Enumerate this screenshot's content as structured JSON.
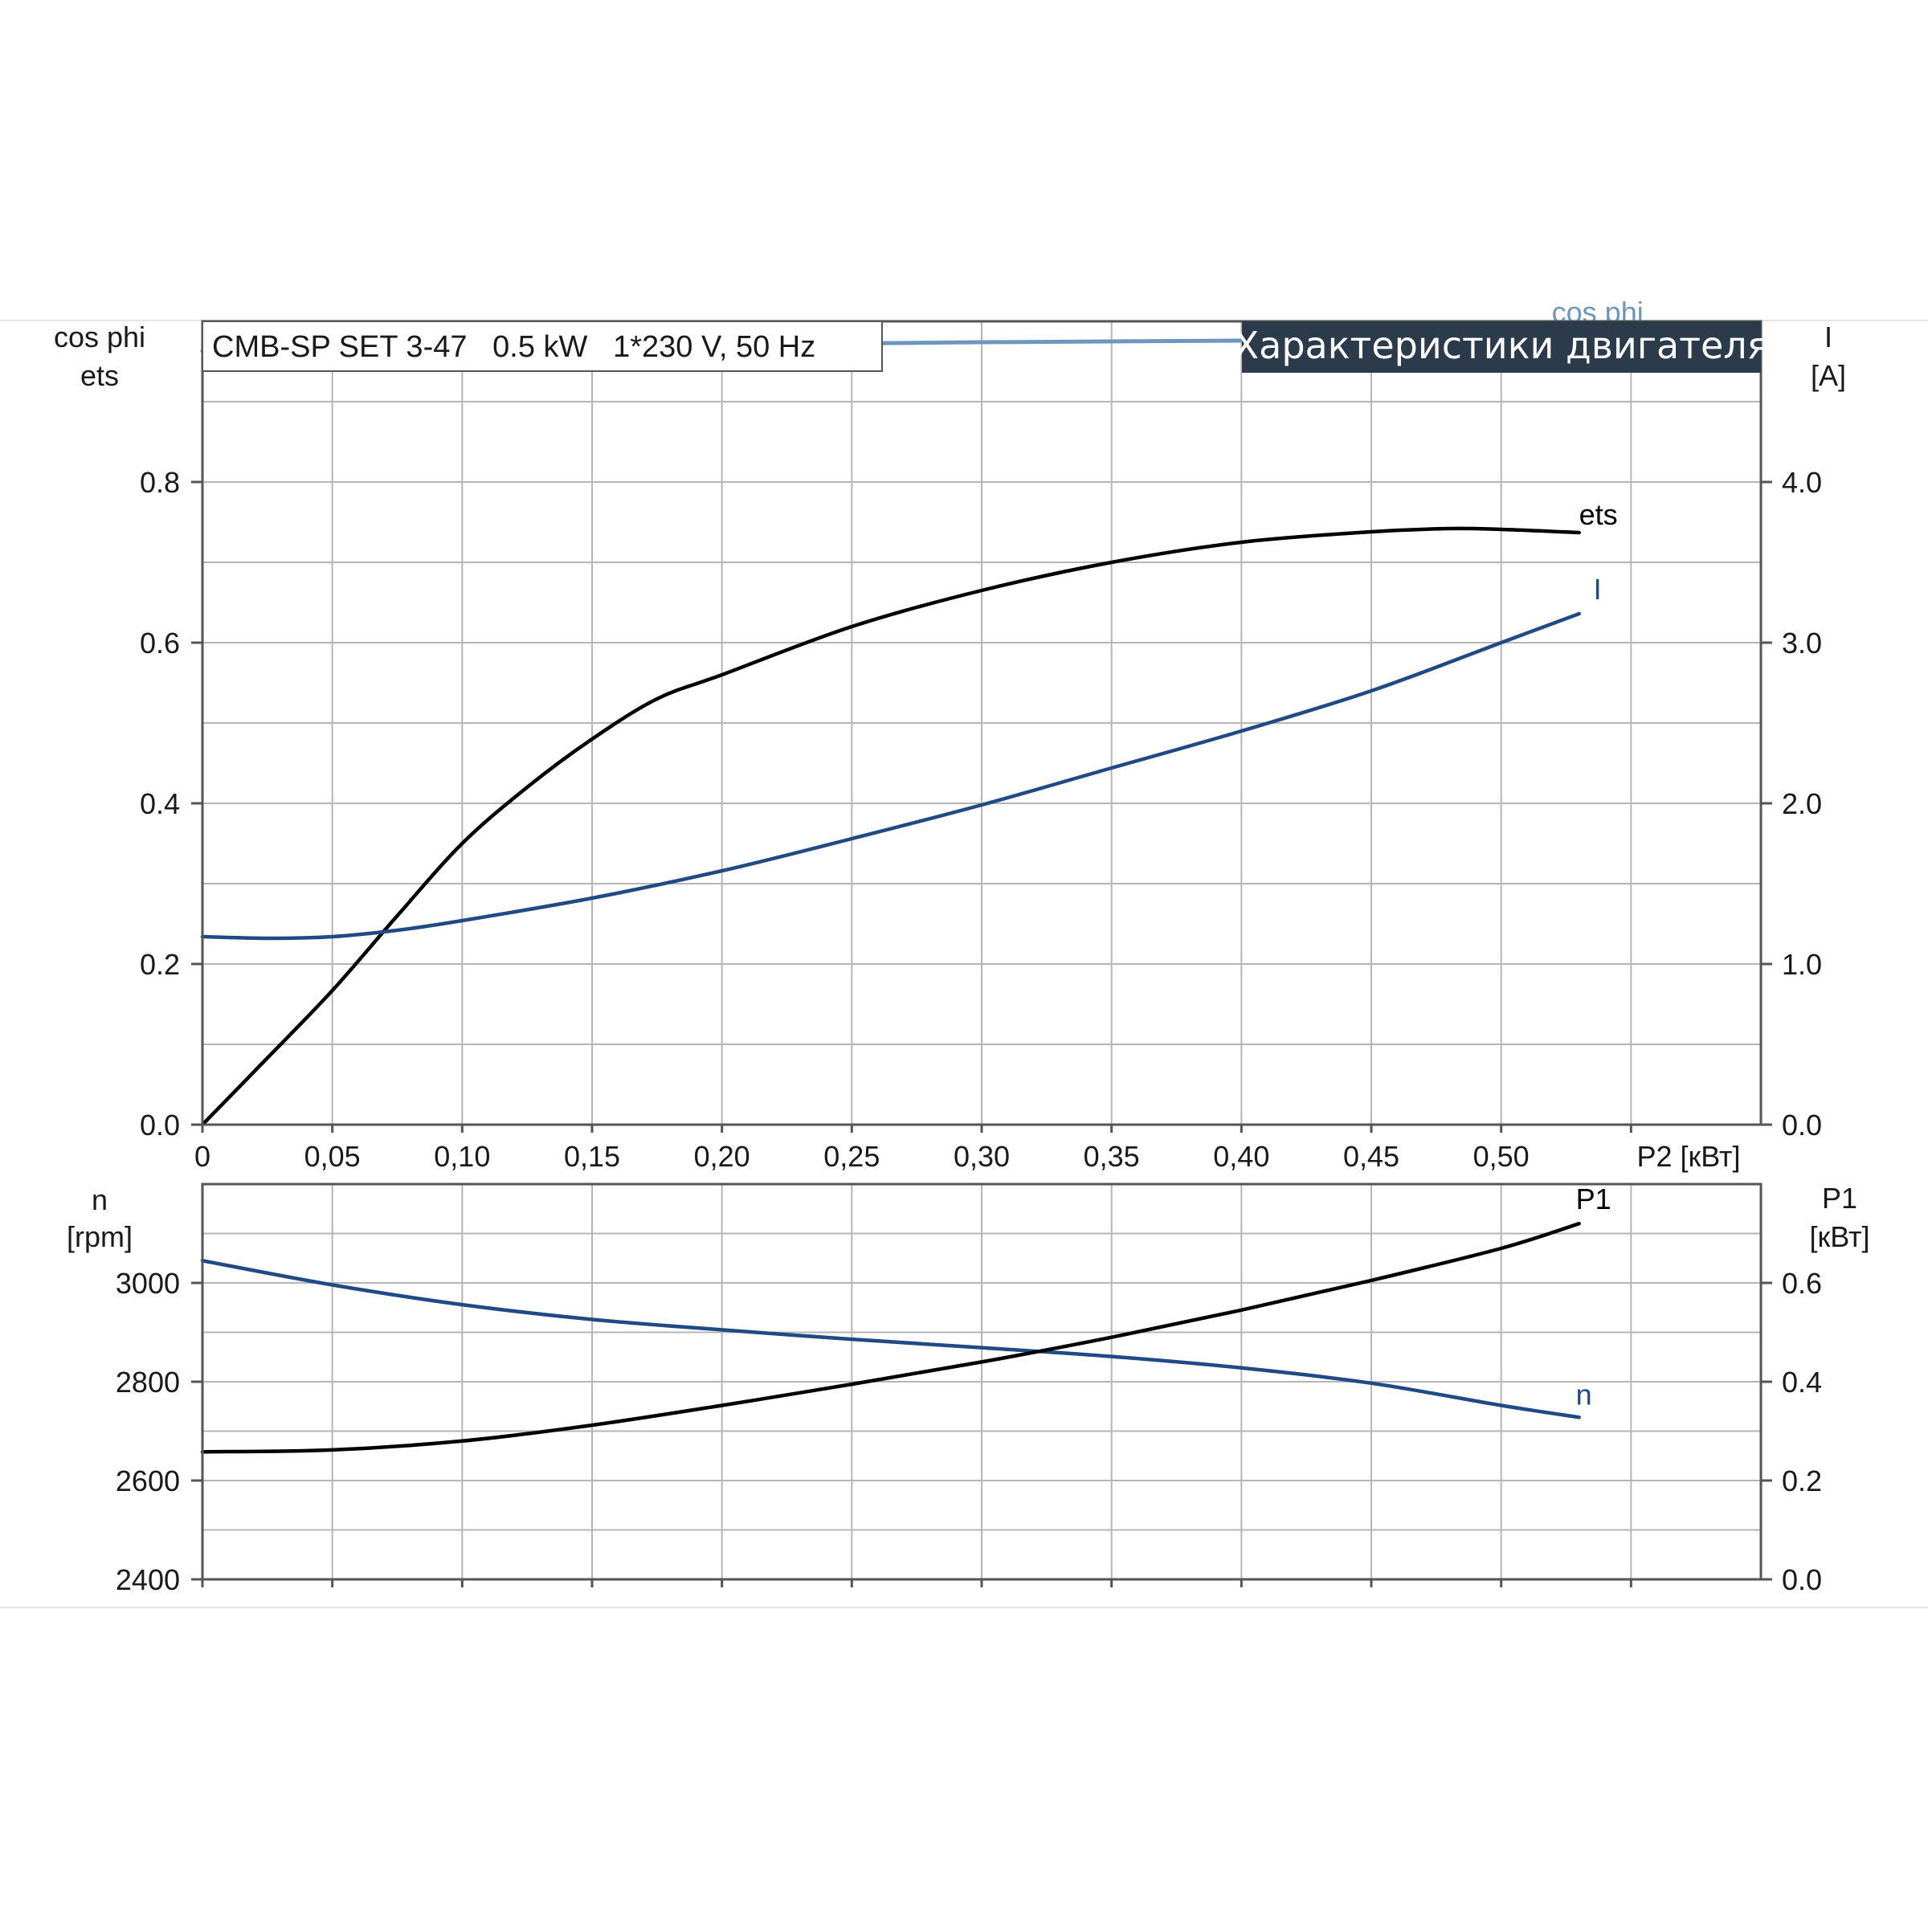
{
  "header": {
    "model_box": "CMB-SP SET 3-47   0.5 kW   1*230 V, 50 Hz",
    "title": "Характеристики двигателя"
  },
  "colors": {
    "ets": "#000000",
    "current": "#1f4a86",
    "cos_phi": "#6e97bf",
    "n": "#1f4a86",
    "p1": "#000000",
    "title_bg": "#2c3b4c",
    "grid": "#b6b6b6",
    "frame": "#555555"
  },
  "chart_data": [
    {
      "type": "line",
      "id": "top",
      "x": {
        "label": "P2 [кВт]",
        "lim": [
          0,
          0.6
        ],
        "ticks": [
          0,
          0.05,
          0.1,
          0.15,
          0.2,
          0.25,
          0.3,
          0.35,
          0.4,
          0.45,
          0.5
        ],
        "tick_labels": [
          "0",
          "0,05",
          "0,10",
          "0,15",
          "0,20",
          "0,25",
          "0,30",
          "0,35",
          "0,40",
          "0,45",
          "0,50"
        ]
      },
      "y_left": {
        "label_lines": [
          "cos phi",
          "ets"
        ],
        "lim": [
          0,
          1.0
        ],
        "ticks": [
          0,
          0.2,
          0.4,
          0.6,
          0.8
        ],
        "tick_labels": [
          "0.0",
          "0.2",
          "0.4",
          "0.6",
          "0.8"
        ]
      },
      "y_right": {
        "label_lines": [
          "I",
          "[A]"
        ],
        "lim": [
          0,
          5.0
        ],
        "ticks": [
          0,
          1.0,
          2.0,
          3.0,
          4.0
        ],
        "tick_labels": [
          "0.0",
          "1.0",
          "2.0",
          "3.0",
          "4.0"
        ]
      },
      "grid": true,
      "series": [
        {
          "name": "cos phi",
          "axis": "left",
          "color_key": "cos_phi",
          "points": [
            [
              0,
              0.963
            ],
            [
              0.1,
              0.967
            ],
            [
              0.2,
              0.971
            ],
            [
              0.3,
              0.974
            ],
            [
              0.4,
              0.976
            ],
            [
              0.5,
              0.978
            ],
            [
              0.53,
              0.979
            ]
          ]
        },
        {
          "name": "ets",
          "axis": "left",
          "color_key": "ets",
          "points": [
            [
              0,
              0.0
            ],
            [
              0.025,
              0.083
            ],
            [
              0.05,
              0.167
            ],
            [
              0.075,
              0.26
            ],
            [
              0.1,
              0.35
            ],
            [
              0.125,
              0.42
            ],
            [
              0.15,
              0.48
            ],
            [
              0.175,
              0.53
            ],
            [
              0.2,
              0.56
            ],
            [
              0.25,
              0.62
            ],
            [
              0.3,
              0.665
            ],
            [
              0.35,
              0.7
            ],
            [
              0.4,
              0.725
            ],
            [
              0.45,
              0.738
            ],
            [
              0.48,
              0.742
            ],
            [
              0.5,
              0.741
            ],
            [
              0.53,
              0.737
            ]
          ]
        },
        {
          "name": "I",
          "axis": "right",
          "color_key": "current",
          "points": [
            [
              0,
              1.17
            ],
            [
              0.025,
              1.16
            ],
            [
              0.05,
              1.17
            ],
            [
              0.075,
              1.21
            ],
            [
              0.1,
              1.27
            ],
            [
              0.15,
              1.41
            ],
            [
              0.2,
              1.58
            ],
            [
              0.25,
              1.78
            ],
            [
              0.3,
              1.99
            ],
            [
              0.35,
              2.22
            ],
            [
              0.4,
              2.45
            ],
            [
              0.45,
              2.7
            ],
            [
              0.5,
              3.0
            ],
            [
              0.53,
              3.18
            ]
          ]
        }
      ]
    },
    {
      "type": "line",
      "id": "bottom",
      "x": {
        "lim": [
          0,
          0.6
        ],
        "ticks": [
          0,
          0.05,
          0.1,
          0.15,
          0.2,
          0.25,
          0.3,
          0.35,
          0.4,
          0.45,
          0.5,
          0.55
        ]
      },
      "y_left": {
        "label_lines": [
          "n",
          "[rpm]"
        ],
        "lim": [
          2400,
          3200
        ],
        "ticks": [
          2400,
          2600,
          2800,
          3000
        ],
        "tick_labels": [
          "2400",
          "2600",
          "2800",
          "3000"
        ]
      },
      "y_right": {
        "label_lines": [
          "P1",
          "[кВт]"
        ],
        "lim": [
          0,
          0.8
        ],
        "ticks": [
          0,
          0.2,
          0.4,
          0.6
        ],
        "tick_labels": [
          "0.0",
          "0.2",
          "0.4",
          "0.6"
        ]
      },
      "grid": true,
      "series": [
        {
          "name": "n",
          "axis": "left",
          "color_key": "n",
          "points": [
            [
              0,
              3045
            ],
            [
              0.05,
              2996
            ],
            [
              0.1,
              2956
            ],
            [
              0.15,
              2926
            ],
            [
              0.2,
              2905
            ],
            [
              0.25,
              2886
            ],
            [
              0.3,
              2869
            ],
            [
              0.35,
              2851
            ],
            [
              0.4,
              2828
            ],
            [
              0.45,
              2797
            ],
            [
              0.5,
              2752
            ],
            [
              0.53,
              2728
            ]
          ]
        },
        {
          "name": "P1",
          "axis": "right",
          "color_key": "p1",
          "points": [
            [
              0,
              0.258
            ],
            [
              0.05,
              0.262
            ],
            [
              0.1,
              0.28
            ],
            [
              0.15,
              0.312
            ],
            [
              0.2,
              0.352
            ],
            [
              0.25,
              0.395
            ],
            [
              0.3,
              0.44
            ],
            [
              0.35,
              0.49
            ],
            [
              0.4,
              0.545
            ],
            [
              0.45,
              0.605
            ],
            [
              0.5,
              0.67
            ],
            [
              0.53,
              0.72
            ]
          ]
        }
      ]
    }
  ]
}
